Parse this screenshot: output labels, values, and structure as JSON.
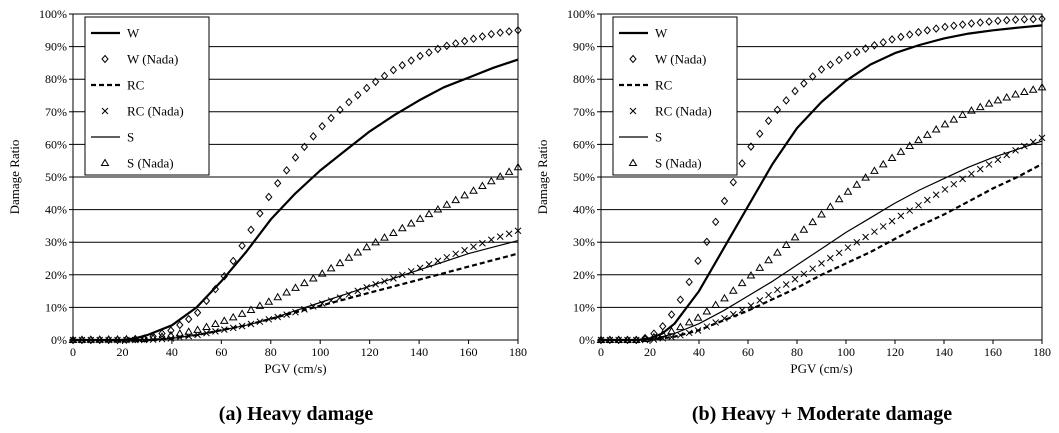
{
  "chart_data": [
    {
      "type": "line",
      "title": "(a) Heavy damage",
      "xlabel": "PGV (cm/s)",
      "ylabel": "Damage Ratio",
      "xlim": [
        0,
        180
      ],
      "ylim": [
        0,
        100
      ],
      "xticks": [
        "0",
        "20",
        "40",
        "60",
        "80",
        "100",
        "120",
        "140",
        "160",
        "180"
      ],
      "yticks": [
        "0%",
        "10%",
        "20%",
        "30%",
        "40%",
        "50%",
        "60%",
        "70%",
        "80%",
        "90%",
        "100%"
      ],
      "grid": "horizontal",
      "legend_position": "top-left",
      "series": [
        {
          "name": "W",
          "style": "solid-thick",
          "x": [
            0,
            20,
            25,
            30,
            40,
            50,
            60,
            70,
            80,
            90,
            100,
            110,
            120,
            130,
            140,
            150,
            160,
            170,
            180
          ],
          "y": [
            0,
            0,
            0.5,
            1.5,
            4.5,
            10,
            18,
            27,
            37,
            45,
            52,
            58,
            64,
            69,
            73.5,
            77.5,
            80.5,
            83.5,
            86
          ]
        },
        {
          "name": "W (Nada)",
          "style": "diamond-markers",
          "x": [
            0,
            20,
            30,
            40,
            50,
            60,
            70,
            80,
            90,
            100,
            110,
            120,
            130,
            140,
            150,
            160,
            170,
            180
          ],
          "y": [
            0,
            0,
            0.5,
            3,
            8,
            18,
            31,
            45,
            56,
            65,
            72,
            78,
            83,
            87,
            90,
            92,
            94,
            95
          ]
        },
        {
          "name": "RC",
          "style": "dashed-thick",
          "x": [
            0,
            30,
            40,
            50,
            60,
            70,
            80,
            90,
            100,
            110,
            120,
            130,
            140,
            150,
            160,
            170,
            180
          ],
          "y": [
            0,
            0,
            0.5,
            1.5,
            3,
            4.5,
            6.5,
            8.5,
            10.5,
            12.5,
            14.5,
            16.5,
            18.5,
            20.5,
            22.5,
            24.5,
            26.5
          ]
        },
        {
          "name": "RC (Nada)",
          "style": "cross-markers",
          "x": [
            0,
            30,
            40,
            50,
            60,
            70,
            80,
            90,
            100,
            110,
            120,
            130,
            140,
            150,
            160,
            170,
            180
          ],
          "y": [
            0,
            0,
            0.5,
            1.5,
            3,
            4.5,
            6.5,
            8.5,
            11,
            13.5,
            16.5,
            19,
            22,
            25,
            28,
            31,
            33.5
          ]
        },
        {
          "name": "S",
          "style": "solid-thin",
          "x": [
            0,
            30,
            40,
            50,
            60,
            70,
            80,
            90,
            100,
            110,
            120,
            130,
            140,
            150,
            160,
            170,
            180
          ],
          "y": [
            0,
            0,
            0.5,
            1.5,
            3,
            4.5,
            6.5,
            9,
            11.5,
            14,
            16.5,
            19,
            21.5,
            24,
            26.5,
            28.5,
            30.5
          ]
        },
        {
          "name": "S (Nada)",
          "style": "triangle-markers",
          "x": [
            0,
            30,
            40,
            50,
            60,
            70,
            80,
            90,
            100,
            110,
            120,
            130,
            140,
            150,
            160,
            170,
            180
          ],
          "y": [
            0,
            0.3,
            1.5,
            3,
            5.5,
            8.5,
            12,
            16,
            20,
            24.5,
            29,
            33,
            37,
            41,
            45,
            49,
            53
          ]
        }
      ]
    },
    {
      "type": "line",
      "title": "(b) Heavy + Moderate damage",
      "xlabel": "PGV (cm/s)",
      "ylabel": "Damage Ratio",
      "xlim": [
        0,
        180
      ],
      "ylim": [
        0,
        100
      ],
      "xticks": [
        "0",
        "20",
        "40",
        "60",
        "80",
        "100",
        "120",
        "140",
        "160",
        "180"
      ],
      "yticks": [
        "0%",
        "10%",
        "20%",
        "30%",
        "40%",
        "50%",
        "60%",
        "70%",
        "80%",
        "90%",
        "100%"
      ],
      "grid": "horizontal",
      "legend_position": "top-left",
      "series": [
        {
          "name": "W",
          "style": "solid-thick",
          "x": [
            0,
            15,
            20,
            25,
            30,
            40,
            50,
            60,
            70,
            80,
            90,
            100,
            110,
            120,
            130,
            140,
            150,
            160,
            170,
            180
          ],
          "y": [
            0,
            0,
            0.5,
            2,
            5,
            15,
            28,
            41,
            54,
            65,
            73,
            79.5,
            84.5,
            88,
            90.5,
            92.5,
            94,
            95,
            95.8,
            96.5
          ]
        },
        {
          "name": "W (Nada)",
          "style": "diamond-markers",
          "x": [
            0,
            15,
            20,
            25,
            30,
            35,
            40,
            45,
            50,
            55,
            60,
            70,
            80,
            90,
            100,
            110,
            120,
            130,
            140,
            150,
            160,
            170,
            180
          ],
          "y": [
            0,
            0,
            1,
            4,
            9,
            16,
            25,
            33,
            42,
            50,
            58,
            69,
            77,
            83,
            87,
            90,
            92.5,
            94.5,
            96,
            97,
            97.8,
            98.3,
            98.5
          ]
        },
        {
          "name": "RC",
          "style": "dashed-thick",
          "x": [
            0,
            20,
            30,
            40,
            50,
            60,
            70,
            80,
            90,
            100,
            110,
            120,
            130,
            140,
            150,
            160,
            170,
            180
          ],
          "y": [
            0,
            0,
            1,
            3,
            6,
            9,
            12.5,
            16,
            20,
            23.5,
            27,
            31,
            35,
            38.5,
            42.5,
            46.5,
            50,
            54
          ]
        },
        {
          "name": "RC (Nada)",
          "style": "cross-markers",
          "x": [
            0,
            20,
            30,
            40,
            50,
            60,
            70,
            80,
            90,
            100,
            110,
            120,
            130,
            140,
            150,
            160,
            170,
            180
          ],
          "y": [
            0,
            0,
            1,
            3,
            6.5,
            10,
            14.5,
            19,
            23.5,
            28,
            32.5,
            37,
            41.5,
            46,
            50.5,
            54.5,
            58.5,
            62
          ]
        },
        {
          "name": "S",
          "style": "solid-thin",
          "x": [
            0,
            20,
            30,
            40,
            50,
            60,
            70,
            80,
            90,
            100,
            110,
            120,
            130,
            140,
            150,
            160,
            170,
            180
          ],
          "y": [
            0,
            0,
            2,
            5,
            9,
            13.5,
            18,
            23,
            28,
            33,
            37.5,
            42,
            46,
            49.5,
            53,
            56,
            58.5,
            61
          ]
        },
        {
          "name": "S (Nada)",
          "style": "triangle-markers",
          "x": [
            0,
            15,
            20,
            30,
            40,
            50,
            60,
            70,
            80,
            90,
            100,
            110,
            120,
            130,
            140,
            150,
            160,
            170,
            180
          ],
          "y": [
            0,
            0,
            0.5,
            3,
            7,
            12.5,
            19,
            25.5,
            32,
            38.5,
            45,
            51,
            56.5,
            61.5,
            66,
            70,
            73,
            75.5,
            77.5
          ]
        }
      ]
    }
  ]
}
